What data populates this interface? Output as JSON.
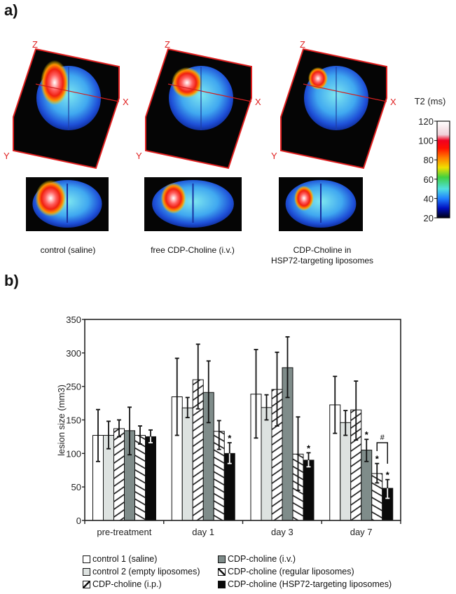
{
  "panel_a": {
    "label": "a)",
    "axis_labels": {
      "x": "X",
      "y": "Y",
      "z": "Z"
    },
    "captions": [
      "control (saline)",
      "free CDP-Choline (i.v.)",
      "CDP-Choline in",
      "HSP72-targeting liposomes"
    ],
    "colorbar": {
      "title": "T2 (ms)",
      "ticks": [
        "120",
        "100",
        "80",
        "60",
        "40",
        "20"
      ],
      "range": [
        20,
        120
      ],
      "colors": [
        "#000010",
        "#0010c0",
        "#2080ff",
        "#50e0e0",
        "#40d040",
        "#f0e000",
        "#ff8000",
        "#ff1000",
        "#f00020",
        "#f0d0d8",
        "#ffffff"
      ]
    }
  },
  "panel_b": {
    "label": "b)"
  },
  "chart_data": {
    "type": "bar",
    "ylabel": "lesion size (mm3)",
    "xlabel": "",
    "y_tick_labels": [
      "0",
      "50",
      "100",
      "150",
      "250",
      "300",
      "350"
    ],
    "ylim": [
      0,
      350
    ],
    "grid": false,
    "categories": [
      "pre-treatment",
      "day 1",
      "day 3",
      "day 7"
    ],
    "series": [
      {
        "name": "control 1 (saline)",
        "fill": "#ffffff",
        "pattern": "none",
        "values": [
          127,
          219,
          227,
          195
        ],
        "err_high": [
          181,
          292,
          305,
          265
        ],
        "err_low": [
          88,
          127,
          123,
          130
        ],
        "marks": [
          "",
          "",
          "",
          ""
        ]
      },
      {
        "name": "control 2 (empty liposomes)",
        "fill": "#dde2e0",
        "pattern": "none",
        "values": [
          127,
          186,
          187,
          146
        ],
        "err_high": [
          148,
          217,
          225,
          178
        ],
        "err_low": [
          107,
          157,
          150,
          127
        ],
        "marks": [
          "",
          "",
          "",
          ""
        ]
      },
      {
        "name": "CDP-choline (i.p.)",
        "fill": "#ffffff",
        "pattern": "slash",
        "values": [
          137,
          260,
          241,
          180
        ],
        "err_high": [
          150,
          313,
          301,
          258
        ],
        "err_low": [
          125,
          183,
          141,
          120
        ],
        "marks": [
          "",
          "",
          "",
          ""
        ]
      },
      {
        "name": "CDP-choline (i.v.)",
        "fill": "#7f8c8a",
        "pattern": "none",
        "values": [
          134,
          232,
          278,
          105
        ],
        "err_high": [
          188,
          288,
          324,
          121
        ],
        "err_low": [
          98,
          146,
          217,
          88
        ],
        "marks": [
          "",
          "",
          "",
          "*"
        ]
      },
      {
        "name": "CDP-choline (regular liposomes)",
        "fill": "#ffffff",
        "pattern": "backslash",
        "values": [
          127,
          133,
          99,
          70
        ],
        "err_high": [
          141,
          149,
          159,
          85
        ],
        "err_low": [
          114,
          106,
          45,
          56
        ],
        "marks": [
          "",
          "",
          "",
          "*"
        ]
      },
      {
        "name": "CDP-choline (HSP72-targeting liposomes)",
        "fill": "#0a0a0a",
        "pattern": "none",
        "values": [
          125,
          100,
          90,
          48
        ],
        "err_high": [
          135,
          116,
          101,
          61
        ],
        "err_low": [
          116,
          85,
          80,
          33
        ],
        "marks": [
          "",
          "*",
          "*",
          "*"
        ]
      }
    ],
    "annotations": [
      {
        "text": "#",
        "category": "day 7",
        "between_series": [
          "CDP-choline (regular liposomes)",
          "CDP-choline (HSP72-targeting liposomes)"
        ]
      }
    ],
    "legend": {
      "placement": "bottom",
      "columns": 2
    }
  }
}
